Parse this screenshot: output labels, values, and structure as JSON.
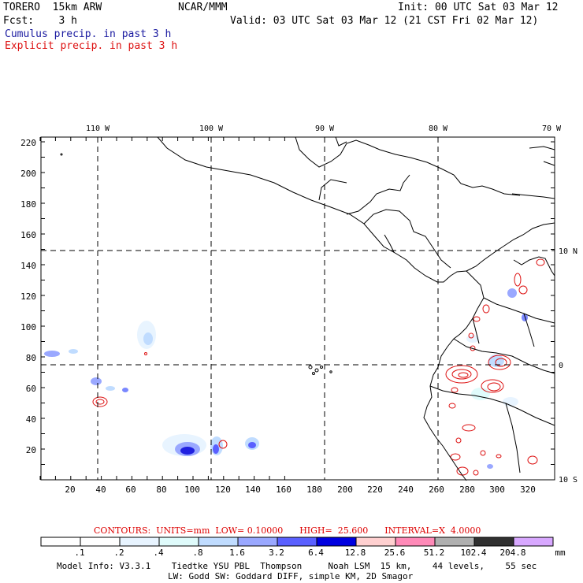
{
  "header": {
    "model": "TORERO  15km ARW",
    "center": "NCAR/MMM",
    "init": "Init: 00 UTC Sat 03 Mar 12",
    "fcst": "Fcst:    3 h",
    "valid": "Valid: 03 UTC Sat 03 Mar 12 (21 CST Fri 02 Mar 12)",
    "legend_cumulus": "Cumulus precip. in past 3 h",
    "legend_explicit": "Explicit precip. in past 3 h"
  },
  "axes": {
    "lon_labels": [
      "110 W",
      "100 W",
      "90 W",
      "80 W",
      "70 W"
    ],
    "lat_labels": [
      "10 N",
      "0",
      "10 S"
    ],
    "y_ticks": [
      "220",
      "200",
      "180",
      "160",
      "140",
      "120",
      "100",
      "80",
      "60",
      "40",
      "20"
    ],
    "x_ticks": [
      "20",
      "40",
      "60",
      "80",
      "100",
      "120",
      "140",
      "160",
      "180",
      "200",
      "220",
      "240",
      "260",
      "280",
      "300",
      "320"
    ]
  },
  "contour_info": {
    "text": "CONTOURS:  UNITS=mm  LOW= 0.10000      HIGH=  25.600      INTERVAL=X  4.0000"
  },
  "colorbar": {
    "labels": [
      ".1",
      ".2",
      ".4",
      ".8",
      "1.6",
      "3.2",
      "6.4",
      "12.8",
      "25.6",
      "51.2",
      "102.4",
      "204.8"
    ],
    "unit": "mm",
    "colors": [
      "#ffffff",
      "#ffffff",
      "#e8f4ff",
      "#dffbfb",
      "#c0dcff",
      "#9aa8ff",
      "#5a60ff",
      "#0000e0",
      "#ffd0d0",
      "#ff8ab8",
      "#b0b0b0",
      "#303030",
      "#d8a8ff"
    ]
  },
  "model_info": {
    "line1": "Model Info: V3.3.1    Tiedtke YSU PBL  Thompson     Noah LSM  15 km,    44 levels,    55 sec",
    "line2": "LW: Godd SW: Goddard DIFF, simple KM, 2D Smagor"
  }
}
